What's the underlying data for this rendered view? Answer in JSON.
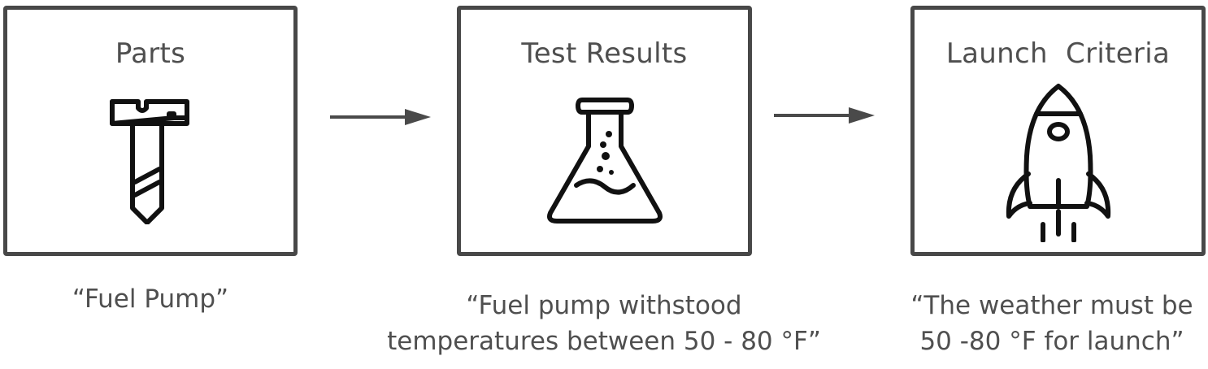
{
  "steps": [
    {
      "title": "Parts",
      "icon": "screw-icon",
      "caption": [
        "“Fuel Pump”"
      ]
    },
    {
      "title": "Test Results",
      "icon": "flask-icon",
      "caption": [
        "“Fuel pump withstood",
        "temperatures between 50 - 80 °F”"
      ]
    },
    {
      "title": "Launch  Criteria",
      "icon": "rocket-icon",
      "caption": [
        "“The weather must be",
        "50 -80 °F for launch”"
      ]
    }
  ],
  "colors": {
    "stroke": "#484848",
    "text": "#4f4f4f"
  }
}
